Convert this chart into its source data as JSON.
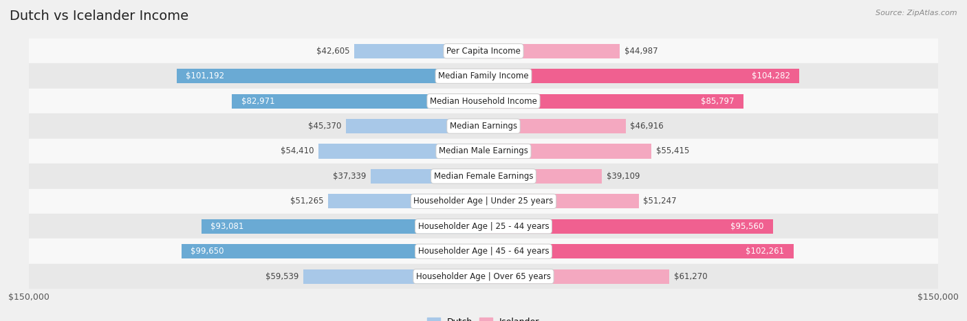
{
  "title": "Dutch vs Icelander Income",
  "source": "Source: ZipAtlas.com",
  "categories": [
    "Per Capita Income",
    "Median Family Income",
    "Median Household Income",
    "Median Earnings",
    "Median Male Earnings",
    "Median Female Earnings",
    "Householder Age | Under 25 years",
    "Householder Age | 25 - 44 years",
    "Householder Age | 45 - 64 years",
    "Householder Age | Over 65 years"
  ],
  "dutch_values": [
    42605,
    101192,
    82971,
    45370,
    54410,
    37339,
    51265,
    93081,
    99650,
    59539
  ],
  "icelander_values": [
    44987,
    104282,
    85797,
    46916,
    55415,
    39109,
    51247,
    95560,
    102261,
    61270
  ],
  "dutch_labels": [
    "$42,605",
    "$101,192",
    "$82,971",
    "$45,370",
    "$54,410",
    "$37,339",
    "$51,265",
    "$93,081",
    "$99,650",
    "$59,539"
  ],
  "icelander_labels": [
    "$44,987",
    "$104,282",
    "$85,797",
    "$46,916",
    "$55,415",
    "$39,109",
    "$51,247",
    "$95,560",
    "$102,261",
    "$61,270"
  ],
  "dutch_label_inside": [
    false,
    true,
    true,
    false,
    false,
    false,
    false,
    true,
    true,
    false
  ],
  "icelander_label_inside": [
    false,
    true,
    true,
    false,
    false,
    false,
    false,
    true,
    true,
    false
  ],
  "max_val": 150000,
  "dutch_color_light": "#a8c8e8",
  "dutch_color_dark": "#6aaad4",
  "icelander_color_light": "#f4a8c0",
  "icelander_color_dark": "#f06090",
  "bg_color": "#f0f0f0",
  "row_bg_even": "#f8f8f8",
  "row_bg_odd": "#e8e8e8",
  "label_fontsize": 8.5,
  "title_fontsize": 14,
  "source_fontsize": 8,
  "axis_fontsize": 9
}
